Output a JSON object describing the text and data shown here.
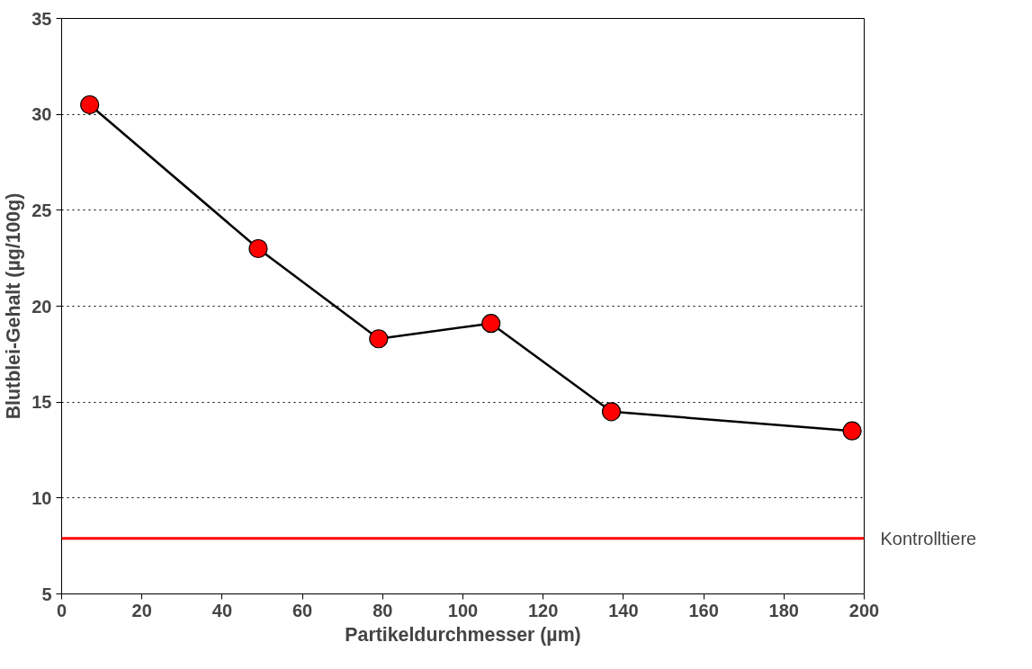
{
  "chart_data": {
    "type": "line",
    "xlabel": "Partikeldurchmesser (µm)",
    "ylabel": "Blutblei-Gehalt (µg/100g)",
    "x": [
      7,
      49,
      79,
      107,
      137,
      197
    ],
    "series": [
      {
        "color": "#000000",
        "colors": [
          "#ff0000",
          "#ff0000",
          "#ff0000",
          "#ff0000",
          "#ff0000",
          "#ff0000"
        ],
        "values": [
          30.5,
          23.0,
          18.3,
          19.1,
          14.5,
          13.5
        ]
      }
    ],
    "marker": "circle",
    "line_style": "solid",
    "xlim": [
      0,
      200
    ],
    "xticks": [
      0,
      20,
      40,
      60,
      80,
      100,
      120,
      140,
      160,
      180,
      200
    ],
    "ylim": [
      5,
      35
    ],
    "yticks": [
      5,
      10,
      15,
      20,
      25,
      30,
      35
    ],
    "grid": "y",
    "ref_lines": [
      {
        "axis": "y",
        "value": 7.9,
        "label": "Kontrolltiere",
        "color": "#ff0000",
        "line_style": "solid"
      }
    ]
  }
}
